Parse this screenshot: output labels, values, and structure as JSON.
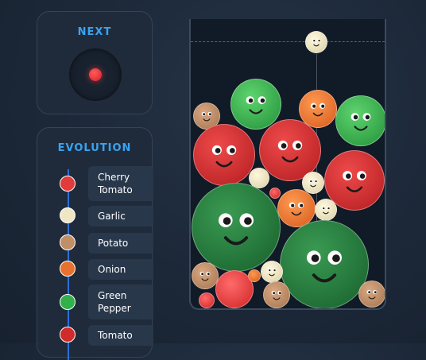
{
  "next": {
    "title": "NEXT",
    "fruit": "cherry-tomato"
  },
  "evolution": {
    "title": "EVOLUTION",
    "items": [
      {
        "label": "Cherry Tomato",
        "color": "#e23b3b"
      },
      {
        "label": "Garlic",
        "color": "#efe6c4"
      },
      {
        "label": "Potato",
        "color": "#c08f67"
      },
      {
        "label": "Onion",
        "color": "#e8712d"
      },
      {
        "label": "Green Pepper",
        "color": "#32b04a"
      },
      {
        "label": "Tomato",
        "color": "#d12a2a"
      }
    ]
  },
  "colors": {
    "cherry_tomato": "#e23b3b",
    "garlic": "#efe6c4",
    "potato": "#c08f67",
    "onion": "#e8712d",
    "green_pepper": "#32b04a",
    "tomato": "#d12a2a",
    "cabbage": "#1f7a3a",
    "accent": "#3aa4ee",
    "danger_line": "#c2393e"
  },
  "board": {
    "fruits": [
      {
        "type": "garlic",
        "face": true
      },
      {
        "type": "potato",
        "face": true
      },
      {
        "type": "green_pepper",
        "face": true
      },
      {
        "type": "onion",
        "face": true
      },
      {
        "type": "green_pepper",
        "face": true
      },
      {
        "type": "tomato",
        "face": true
      },
      {
        "type": "tomato",
        "face": true
      },
      {
        "type": "tomato",
        "face": true
      },
      {
        "type": "garlic",
        "face": false
      },
      {
        "type": "garlic",
        "face": true
      },
      {
        "type": "cherry_tomato",
        "face": false
      },
      {
        "type": "onion",
        "face": true
      },
      {
        "type": "garlic",
        "face": true
      },
      {
        "type": "cabbage",
        "face": true
      },
      {
        "type": "cabbage",
        "face": true
      },
      {
        "type": "potato",
        "face": true
      },
      {
        "type": "cherry_tomato",
        "face": false
      },
      {
        "type": "onion",
        "face": true
      },
      {
        "type": "garlic",
        "face": true
      },
      {
        "type": "potato",
        "face": true
      },
      {
        "type": "cherry_tomato",
        "face": false
      },
      {
        "type": "potato",
        "face": true
      }
    ]
  }
}
